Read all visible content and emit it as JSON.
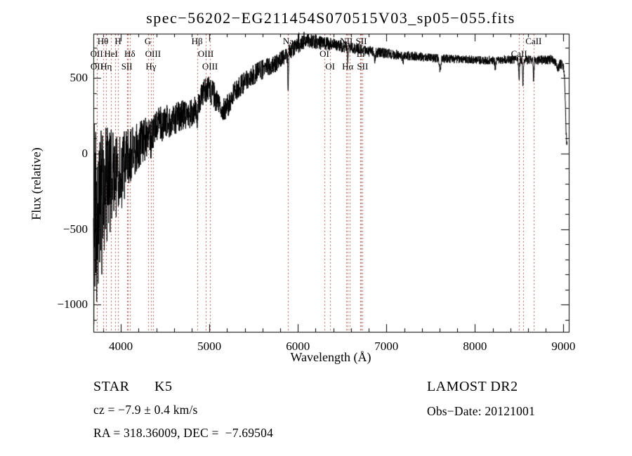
{
  "title": "spec−56202−EG211454S070515V03_sp05−055.fits",
  "axes": {
    "xlabel": "Wavelength (Å)",
    "ylabel": "Flux (relative)",
    "x_ticks": [
      {
        "value": 4000,
        "label": "4000"
      },
      {
        "value": 5000,
        "label": "5000"
      },
      {
        "value": 6000,
        "label": "6000"
      },
      {
        "value": 7000,
        "label": "7000"
      },
      {
        "value": 8000,
        "label": "8000"
      },
      {
        "value": 9000,
        "label": "9000"
      }
    ],
    "y_ticks": [
      {
        "value": 500,
        "label": "500"
      },
      {
        "value": 0,
        "label": "0"
      },
      {
        "value": -500,
        "label": "−500"
      },
      {
        "value": -1000,
        "label": "−1000"
      }
    ]
  },
  "annotations": {
    "object_type": "STAR",
    "subclass": "K5",
    "survey": "LAMOST DR2",
    "cz": "cz = −7.9 ± 0.4 km/s",
    "obs_date": "Obs−Date: 20121001",
    "radec": "RA = 318.36009, DEC =  −7.69504"
  },
  "spectral_lines": [
    {
      "label": "OII",
      "wavelength": 3727,
      "row": 2
    },
    {
      "label": "OII",
      "wavelength": 3729,
      "row": 3
    },
    {
      "label": "Hθ",
      "wavelength": 3798,
      "row": 1
    },
    {
      "label": "Hη",
      "wavelength": 3835,
      "row": 3
    },
    {
      "label": "HeI",
      "wavelength": 3889,
      "row": 2
    },
    {
      "label": "",
      "wavelength": 3933,
      "row": 0
    },
    {
      "label": "H",
      "wavelength": 3968,
      "row": 1
    },
    {
      "label": "SII",
      "wavelength": 4068,
      "row": 3
    },
    {
      "label": "",
      "wavelength": 4076,
      "row": 0
    },
    {
      "label": "Hδ",
      "wavelength": 4101,
      "row": 2
    },
    {
      "label": "G",
      "wavelength": 4305,
      "row": 1
    },
    {
      "label": "Hγ",
      "wavelength": 4340,
      "row": 3
    },
    {
      "label": "OIII",
      "wavelength": 4363,
      "row": 2
    },
    {
      "label": "Hβ",
      "wavelength": 4861,
      "row": 1
    },
    {
      "label": "OIII",
      "wavelength": 4959,
      "row": 2
    },
    {
      "label": "OIII",
      "wavelength": 5007,
      "row": 3
    },
    {
      "label": "Na",
      "wavelength": 5890,
      "row": 1
    },
    {
      "label": "OI",
      "wavelength": 6300,
      "row": 2
    },
    {
      "label": "OI",
      "wavelength": 6364,
      "row": 3
    },
    {
      "label": "NII",
      "wavelength": 6548,
      "row": 1
    },
    {
      "label": "Hα",
      "wavelength": 6563,
      "row": 3
    },
    {
      "label": "",
      "wavelength": 6583,
      "row": 0
    },
    {
      "label": "Li",
      "wavelength": 6708,
      "row": 2
    },
    {
      "label": "SII",
      "wavelength": 6716,
      "row": 1
    },
    {
      "label": "SII",
      "wavelength": 6731,
      "row": 3
    },
    {
      "label": "CaII",
      "wavelength": 8498,
      "row": 2
    },
    {
      "label": "",
      "wavelength": 8542,
      "row": 0
    },
    {
      "label": "CaII",
      "wavelength": 8662,
      "row": 1
    }
  ],
  "chart_data": {
    "type": "line",
    "title": "spec−56202−EG211454S070515V03_sp05−055.fits",
    "xlabel": "Wavelength (Å)",
    "ylabel": "Flux (relative)",
    "xlim": [
      3690,
      9060
    ],
    "ylim": [
      -1180,
      794
    ],
    "grid": false,
    "line_color": "#000000",
    "marker_line_color": "#9c3a33",
    "continuum_points": [
      [
        3690,
        -250
      ],
      [
        3720,
        -280
      ],
      [
        3760,
        -210
      ],
      [
        3800,
        -160
      ],
      [
        3850,
        -110
      ],
      [
        3900,
        -70
      ],
      [
        3950,
        -85
      ],
      [
        4000,
        -90
      ],
      [
        4050,
        -40
      ],
      [
        4100,
        -10
      ],
      [
        4150,
        20
      ],
      [
        4200,
        50
      ],
      [
        4250,
        80
      ],
      [
        4300,
        115
      ],
      [
        4350,
        150
      ],
      [
        4400,
        175
      ],
      [
        4450,
        195
      ],
      [
        4500,
        210
      ],
      [
        4550,
        220
      ],
      [
        4600,
        230
      ],
      [
        4650,
        240
      ],
      [
        4700,
        252
      ],
      [
        4750,
        258
      ],
      [
        4800,
        268
      ],
      [
        4830,
        285
      ],
      [
        4880,
        330
      ],
      [
        4935,
        400
      ],
      [
        5000,
        425
      ],
      [
        5060,
        380
      ],
      [
        5120,
        305
      ],
      [
        5175,
        290
      ],
      [
        5230,
        335
      ],
      [
        5300,
        420
      ],
      [
        5380,
        460
      ],
      [
        5460,
        510
      ],
      [
        5550,
        540
      ],
      [
        5650,
        570
      ],
      [
        5750,
        600
      ],
      [
        5850,
        640
      ],
      [
        5950,
        695
      ],
      [
        6050,
        735
      ],
      [
        6150,
        745
      ],
      [
        6250,
        735
      ],
      [
        6350,
        725
      ],
      [
        6450,
        715
      ],
      [
        6550,
        705
      ],
      [
        6650,
        695
      ],
      [
        6750,
        685
      ],
      [
        6850,
        672
      ],
      [
        6950,
        668
      ],
      [
        7100,
        655
      ],
      [
        7300,
        645
      ],
      [
        7500,
        635
      ],
      [
        7700,
        628
      ],
      [
        7900,
        622
      ],
      [
        8100,
        618
      ],
      [
        8300,
        622
      ],
      [
        8500,
        622
      ],
      [
        8700,
        618
      ],
      [
        8850,
        622
      ],
      [
        8950,
        602
      ],
      [
        8995,
        582
      ],
      [
        9012,
        520
      ],
      [
        9030,
        130
      ],
      [
        9042,
        30
      ]
    ],
    "noise_profile": [
      [
        3690,
        480
      ],
      [
        3750,
        400
      ],
      [
        3800,
        330
      ],
      [
        3850,
        290
      ],
      [
        3900,
        255
      ],
      [
        3950,
        230
      ],
      [
        4000,
        215
      ],
      [
        4100,
        175
      ],
      [
        4200,
        155
      ],
      [
        4300,
        140
      ],
      [
        4400,
        125
      ],
      [
        4500,
        115
      ],
      [
        4700,
        100
      ],
      [
        4900,
        92
      ],
      [
        5100,
        85
      ],
      [
        5300,
        75
      ],
      [
        5500,
        68
      ],
      [
        5700,
        62
      ],
      [
        5900,
        55
      ],
      [
        6100,
        50
      ],
      [
        6300,
        45
      ],
      [
        6500,
        40
      ],
      [
        6700,
        38
      ],
      [
        7000,
        34
      ],
      [
        7400,
        30
      ],
      [
        7800,
        28
      ],
      [
        8200,
        28
      ],
      [
        8600,
        30
      ],
      [
        9000,
        32
      ]
    ],
    "absorption_features": [
      {
        "wavelength": 3933,
        "depth": 110,
        "width": 4
      },
      {
        "wavelength": 3968,
        "depth": 110,
        "width": 4
      },
      {
        "wavelength": 4101,
        "depth": 95,
        "width": 4.5
      },
      {
        "wavelength": 4305,
        "depth": 75,
        "width": 7
      },
      {
        "wavelength": 4340,
        "depth": 90,
        "width": 4.5
      },
      {
        "wavelength": 4861,
        "depth": 120,
        "width": 5
      },
      {
        "wavelength": 5890,
        "depth": 235,
        "width": 3.5
      },
      {
        "wavelength": 6563,
        "depth": 110,
        "width": 4
      },
      {
        "wavelength": 6867,
        "depth": 55,
        "width": 7
      },
      {
        "wavelength": 7186,
        "depth": 35,
        "width": 7
      },
      {
        "wavelength": 7605,
        "depth": 70,
        "width": 9
      },
      {
        "wavelength": 8230,
        "depth": 45,
        "width": 7
      },
      {
        "wavelength": 8498,
        "depth": 130,
        "width": 4.5
      },
      {
        "wavelength": 8542,
        "depth": 150,
        "width": 4.5
      },
      {
        "wavelength": 8662,
        "depth": 115,
        "width": 4.5
      },
      {
        "wavelength": 8940,
        "depth": 40,
        "width": 10
      }
    ],
    "noise_spikes": [
      [
        3694,
        -1130
      ],
      [
        3700,
        -620
      ],
      [
        3706,
        -880
      ],
      [
        3713,
        -520
      ],
      [
        3719,
        -790
      ],
      [
        3726,
        -980
      ],
      [
        3734,
        -700
      ],
      [
        3742,
        -860
      ],
      [
        3750,
        -600
      ],
      [
        3760,
        -720
      ],
      [
        3772,
        -640
      ],
      [
        3784,
        -800
      ],
      [
        3797,
        -560
      ],
      [
        3812,
        -640
      ],
      [
        3826,
        -500
      ],
      [
        3843,
        -580
      ],
      [
        3860,
        -460
      ],
      [
        3878,
        -520
      ],
      [
        3896,
        -430
      ],
      [
        3920,
        -380
      ],
      [
        3947,
        -420
      ],
      [
        3975,
        -340
      ],
      [
        4010,
        -360
      ],
      [
        4040,
        -300
      ],
      [
        6010,
        800
      ],
      [
        6068,
        805
      ],
      [
        6120,
        790
      ]
    ]
  }
}
